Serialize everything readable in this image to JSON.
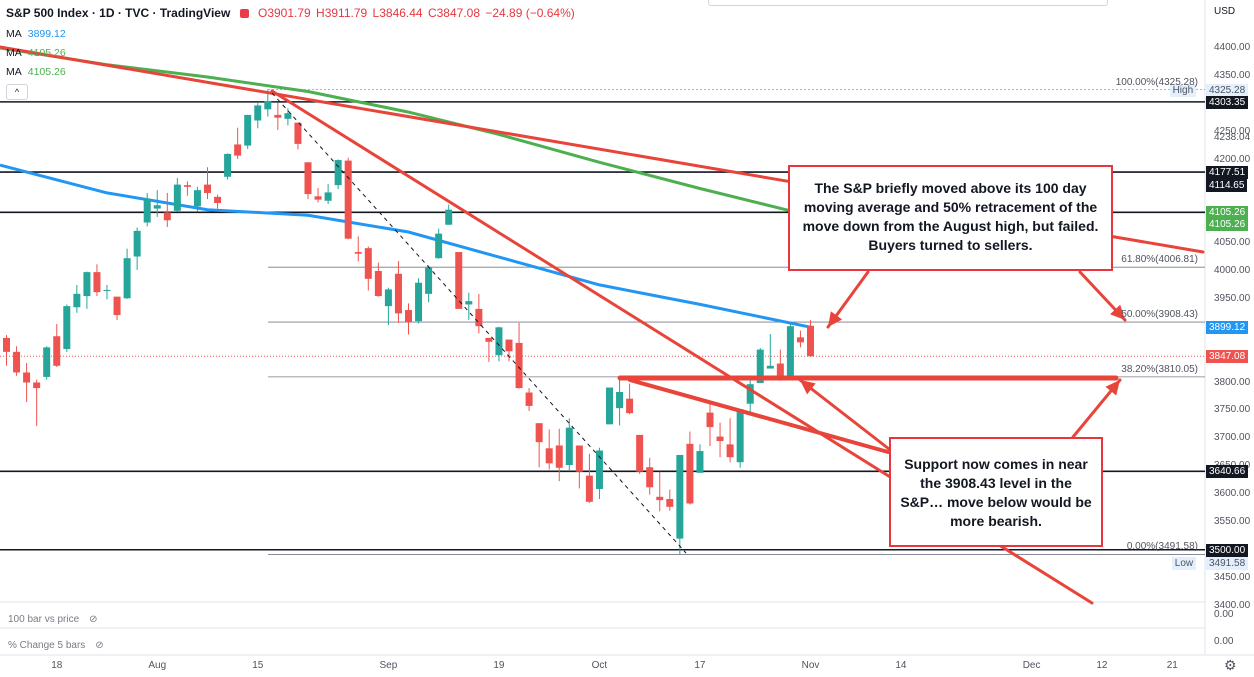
{
  "header": {
    "symbol": "S&P 500 Index · 1D · TVC · TradingView",
    "open": "O3901.79",
    "high": "H3911.79",
    "low": "L3846.44",
    "close": "C3847.08",
    "change": "−24.89 (−0.64%)"
  },
  "indicators": [
    {
      "name": "MA",
      "value": "3899.12",
      "color": "#2196f3"
    },
    {
      "name": "MA",
      "value": "4105.26",
      "color": "#4caf50"
    },
    {
      "name": "MA",
      "value": "4105.26",
      "color": "#4caf50"
    }
  ],
  "axis": {
    "currency": "USD",
    "y_ticks": [
      "4400.00",
      "4350.00",
      "4250.00",
      "4238.04",
      "4200.00",
      "4050.00",
      "4000.00",
      "3950.00",
      "3800.00",
      "3750.00",
      "3700.00",
      "3650.00",
      "3600.00",
      "3550.00",
      "3450.00",
      "3400.00"
    ],
    "x_ticks": [
      {
        "label": "18",
        "date": "2022-07-18"
      },
      {
        "label": "Aug",
        "date": "2022-08-01"
      },
      {
        "label": "15",
        "date": "2022-08-15"
      },
      {
        "label": "Sep",
        "date": "2022-09-01"
      },
      {
        "label": "19",
        "date": "2022-09-19"
      },
      {
        "label": "Oct",
        "date": "2022-10-03"
      },
      {
        "label": "17",
        "date": "2022-10-17"
      },
      {
        "label": "Nov",
        "date": "2022-11-01"
      },
      {
        "label": "14",
        "date": "2022-11-14"
      },
      {
        "label": "Dec",
        "date": "2022-12-01"
      },
      {
        "label": "12",
        "date": "2022-12-12"
      },
      {
        "label": "21",
        "date": "2022-12-21"
      }
    ]
  },
  "price_tags": [
    {
      "label": "High",
      "value": "4325.28",
      "style": "soft"
    },
    {
      "label": "",
      "value": "4303.35",
      "style": "dark"
    },
    {
      "label": "",
      "value": "4177.51",
      "style": "dark"
    },
    {
      "label": "",
      "value": "4114.65",
      "style": "dark"
    },
    {
      "label": "",
      "value": "4105.26",
      "style": "green"
    },
    {
      "label": "",
      "value": "4105.26",
      "style": "green"
    },
    {
      "label": "",
      "value": "3899.12",
      "style": "blue"
    },
    {
      "label": "",
      "value": "3847.08",
      "style": "red"
    },
    {
      "label": "",
      "value": "3640.66",
      "style": "dark"
    },
    {
      "label": "",
      "value": "3500.00",
      "style": "dark"
    },
    {
      "label": "Low",
      "value": "3491.58",
      "style": "soft"
    }
  ],
  "fib_labels": [
    {
      "text": "100.00%(4325.28)",
      "price": 4325.28
    },
    {
      "text": "61.80%(4006.81)",
      "price": 4006.81
    },
    {
      "text": "50.00%(3908.43)",
      "price": 3908.43
    },
    {
      "text": "38.20%(3810.05)",
      "price": 3810.05
    },
    {
      "text": "0.00%(3491.58)",
      "price": 3491.58
    }
  ],
  "sub_panes": [
    {
      "label": "100 bar vs price",
      "value": "0.00"
    },
    {
      "label": "% Change 5 bars",
      "value": "0.00"
    }
  ],
  "annotations": {
    "upper": "The S&P briefly moved above its 100 day moving average and 50% retracement of the move down from the August high, but failed. Buyers turned to sellers.",
    "lower": "Support now comes in near the 3908.43 level in the S&P… move below would be more bearish."
  },
  "colors": {
    "up": "#26a69a",
    "down": "#ef5350",
    "ma100": "#2196f3",
    "ma200": "#4caf50",
    "trend": "#e8443a",
    "annotation": "#e8363f"
  },
  "chart_data": {
    "type": "candlestick",
    "title": "S&P 500 Index · 1D · TVC",
    "ylim": [
      3400,
      4430
    ],
    "horizontal_levels": [
      4303.35,
      4177.51,
      4105.26,
      3640.66,
      3500.0
    ],
    "candles": [
      {
        "date": "2022-07-11",
        "o": 3880,
        "h": 3885,
        "l": 3830,
        "c": 3855
      },
      {
        "date": "2022-07-12",
        "o": 3855,
        "h": 3865,
        "l": 3812,
        "c": 3818
      },
      {
        "date": "2022-07-13",
        "o": 3818,
        "h": 3835,
        "l": 3765,
        "c": 3800
      },
      {
        "date": "2022-07-14",
        "o": 3800,
        "h": 3805,
        "l": 3722,
        "c": 3790
      },
      {
        "date": "2022-07-15",
        "o": 3810,
        "h": 3865,
        "l": 3805,
        "c": 3863
      },
      {
        "date": "2022-07-18",
        "o": 3883,
        "h": 3905,
        "l": 3828,
        "c": 3830
      },
      {
        "date": "2022-07-19",
        "o": 3860,
        "h": 3940,
        "l": 3855,
        "c": 3937
      },
      {
        "date": "2022-07-20",
        "o": 3935,
        "h": 3975,
        "l": 3925,
        "c": 3959
      },
      {
        "date": "2022-07-21",
        "o": 3955,
        "h": 3999,
        "l": 3932,
        "c": 3998
      },
      {
        "date": "2022-07-22",
        "o": 3998,
        "h": 4012,
        "l": 3955,
        "c": 3962
      },
      {
        "date": "2022-07-25",
        "o": 3966,
        "h": 3975,
        "l": 3949,
        "c": 3966
      },
      {
        "date": "2022-07-26",
        "o": 3954,
        "h": 3954,
        "l": 3912,
        "c": 3921
      },
      {
        "date": "2022-07-27",
        "o": 3951,
        "h": 4040,
        "l": 3950,
        "c": 4023
      },
      {
        "date": "2022-07-28",
        "o": 4026,
        "h": 4078,
        "l": 4002,
        "c": 4072
      },
      {
        "date": "2022-07-29",
        "o": 4087,
        "h": 4140,
        "l": 4080,
        "c": 4130
      },
      {
        "date": "2022-08-01",
        "o": 4112,
        "h": 4145,
        "l": 4097,
        "c": 4118
      },
      {
        "date": "2022-08-02",
        "o": 4105,
        "h": 4140,
        "l": 4079,
        "c": 4091
      },
      {
        "date": "2022-08-03",
        "o": 4108,
        "h": 4167,
        "l": 4107,
        "c": 4155
      },
      {
        "date": "2022-08-04",
        "o": 4154,
        "h": 4161,
        "l": 4135,
        "c": 4151
      },
      {
        "date": "2022-08-05",
        "o": 4116,
        "h": 4151,
        "l": 4107,
        "c": 4145
      },
      {
        "date": "2022-08-08",
        "o": 4155,
        "h": 4186,
        "l": 4129,
        "c": 4140
      },
      {
        "date": "2022-08-09",
        "o": 4133,
        "h": 4137,
        "l": 4112,
        "c": 4122
      },
      {
        "date": "2022-08-10",
        "o": 4169,
        "h": 4211,
        "l": 4164,
        "c": 4210
      },
      {
        "date": "2022-08-11",
        "o": 4227,
        "h": 4257,
        "l": 4201,
        "c": 4207
      },
      {
        "date": "2022-08-12",
        "o": 4225,
        "h": 4280,
        "l": 4219,
        "c": 4280
      },
      {
        "date": "2022-08-15",
        "o": 4270,
        "h": 4301,
        "l": 4256,
        "c": 4297
      },
      {
        "date": "2022-08-16",
        "o": 4290,
        "h": 4325.28,
        "l": 4277,
        "c": 4305
      },
      {
        "date": "2022-08-17",
        "o": 4280,
        "h": 4302,
        "l": 4253,
        "c": 4275
      },
      {
        "date": "2022-08-18",
        "o": 4273,
        "h": 4292,
        "l": 4261,
        "c": 4283
      },
      {
        "date": "2022-08-19",
        "o": 4266,
        "h": 4266,
        "l": 4218,
        "c": 4228
      },
      {
        "date": "2022-08-22",
        "o": 4195,
        "h": 4195,
        "l": 4129,
        "c": 4138
      },
      {
        "date": "2022-08-23",
        "o": 4134,
        "h": 4149,
        "l": 4123,
        "c": 4128
      },
      {
        "date": "2022-08-24",
        "o": 4126,
        "h": 4156,
        "l": 4120,
        "c": 4141
      },
      {
        "date": "2022-08-25",
        "o": 4154,
        "h": 4200,
        "l": 4147,
        "c": 4199
      },
      {
        "date": "2022-08-26",
        "o": 4198,
        "h": 4203,
        "l": 4057,
        "c": 4058
      },
      {
        "date": "2022-08-29",
        "o": 4034,
        "h": 4062,
        "l": 4017,
        "c": 4031
      },
      {
        "date": "2022-08-30",
        "o": 4041,
        "h": 4044,
        "l": 3965,
        "c": 3986
      },
      {
        "date": "2022-08-31",
        "o": 4000,
        "h": 4015,
        "l": 3954,
        "c": 3955
      },
      {
        "date": "2022-09-01",
        "o": 3937,
        "h": 3970,
        "l": 3903,
        "c": 3967
      },
      {
        "date": "2022-09-02",
        "o": 3995,
        "h": 4018,
        "l": 3907,
        "c": 3924
      },
      {
        "date": "2022-09-06",
        "o": 3930,
        "h": 3942,
        "l": 3886,
        "c": 3908
      },
      {
        "date": "2022-09-07",
        "o": 3910,
        "h": 3987,
        "l": 3906,
        "c": 3979
      },
      {
        "date": "2022-09-08",
        "o": 3959,
        "h": 4010,
        "l": 3944,
        "c": 4006
      },
      {
        "date": "2022-09-09",
        "o": 4023,
        "h": 4076,
        "l": 4022,
        "c": 4067
      },
      {
        "date": "2022-09-12",
        "o": 4083,
        "h": 4119,
        "l": 4083,
        "c": 4110
      },
      {
        "date": "2022-09-13",
        "o": 4034,
        "h": 4034,
        "l": 3933,
        "c": 3932
      },
      {
        "date": "2022-09-14",
        "o": 3940,
        "h": 3961,
        "l": 3912,
        "c": 3946
      },
      {
        "date": "2022-09-15",
        "o": 3932,
        "h": 3959,
        "l": 3888,
        "c": 3901
      },
      {
        "date": "2022-09-16",
        "o": 3880,
        "h": 3880,
        "l": 3837,
        "c": 3873
      },
      {
        "date": "2022-09-19",
        "o": 3849,
        "h": 3900,
        "l": 3838,
        "c": 3899
      },
      {
        "date": "2022-09-20",
        "o": 3877,
        "h": 3877,
        "l": 3838,
        "c": 3856
      },
      {
        "date": "2022-09-21",
        "o": 3871,
        "h": 3907,
        "l": 3789,
        "c": 3790
      },
      {
        "date": "2022-09-22",
        "o": 3782,
        "h": 3790,
        "l": 3749,
        "c": 3758
      },
      {
        "date": "2022-09-23",
        "o": 3727,
        "h": 3727,
        "l": 3648,
        "c": 3693
      },
      {
        "date": "2022-09-26",
        "o": 3682,
        "h": 3716,
        "l": 3644,
        "c": 3655
      },
      {
        "date": "2022-09-27",
        "o": 3687,
        "h": 3717,
        "l": 3623,
        "c": 3647
      },
      {
        "date": "2022-09-28",
        "o": 3652,
        "h": 3736,
        "l": 3641,
        "c": 3719
      },
      {
        "date": "2022-09-29",
        "o": 3687,
        "h": 3687,
        "l": 3610,
        "c": 3640
      },
      {
        "date": "2022-09-30",
        "o": 3633,
        "h": 3672,
        "l": 3584,
        "c": 3586
      },
      {
        "date": "2022-10-03",
        "o": 3609,
        "h": 3683,
        "l": 3591,
        "c": 3678
      },
      {
        "date": "2022-10-04",
        "o": 3725,
        "h": 3791,
        "l": 3725,
        "c": 3791
      },
      {
        "date": "2022-10-05",
        "o": 3754,
        "h": 3807,
        "l": 3723,
        "c": 3783
      },
      {
        "date": "2022-10-06",
        "o": 3771,
        "h": 3798,
        "l": 3743,
        "c": 3745
      },
      {
        "date": "2022-10-07",
        "o": 3706,
        "h": 3706,
        "l": 3636,
        "c": 3640
      },
      {
        "date": "2022-10-10",
        "o": 3648,
        "h": 3665,
        "l": 3599,
        "c": 3612
      },
      {
        "date": "2022-10-11",
        "o": 3595,
        "h": 3640,
        "l": 3569,
        "c": 3589
      },
      {
        "date": "2022-10-12",
        "o": 3591,
        "h": 3608,
        "l": 3570,
        "c": 3577
      },
      {
        "date": "2022-10-13",
        "o": 3520,
        "h": 3670,
        "l": 3491.58,
        "c": 3670
      },
      {
        "date": "2022-10-14",
        "o": 3690,
        "h": 3712,
        "l": 3581,
        "c": 3583
      },
      {
        "date": "2022-10-17",
        "o": 3638,
        "h": 3689,
        "l": 3638,
        "c": 3677
      },
      {
        "date": "2022-10-18",
        "o": 3746,
        "h": 3762,
        "l": 3686,
        "c": 3720
      },
      {
        "date": "2022-10-19",
        "o": 3703,
        "h": 3728,
        "l": 3666,
        "c": 3695
      },
      {
        "date": "2022-10-20",
        "o": 3689,
        "h": 3736,
        "l": 3657,
        "c": 3666
      },
      {
        "date": "2022-10-21",
        "o": 3657,
        "h": 3752,
        "l": 3647,
        "c": 3752
      },
      {
        "date": "2022-10-24",
        "o": 3762,
        "h": 3810,
        "l": 3741,
        "c": 3797
      },
      {
        "date": "2022-10-25",
        "o": 3799,
        "h": 3862,
        "l": 3799,
        "c": 3859
      },
      {
        "date": "2022-10-26",
        "o": 3825,
        "h": 3887,
        "l": 3825,
        "c": 3830
      },
      {
        "date": "2022-10-27",
        "o": 3834,
        "h": 3859,
        "l": 3803,
        "c": 3807
      },
      {
        "date": "2022-10-28",
        "o": 3808,
        "h": 3905,
        "l": 3808,
        "c": 3901
      },
      {
        "date": "2022-10-31",
        "o": 3881,
        "h": 3893,
        "l": 3863,
        "c": 3872
      },
      {
        "date": "2022-11-01",
        "o": 3901.79,
        "h": 3911.79,
        "l": 3846.44,
        "c": 3847.08
      }
    ],
    "ma100": [
      {
        "date": "2022-07-11",
        "v": 4190
      },
      {
        "date": "2022-07-25",
        "v": 4140
      },
      {
        "date": "2022-08-08",
        "v": 4110
      },
      {
        "date": "2022-08-22",
        "v": 4100
      },
      {
        "date": "2022-09-06",
        "v": 4070
      },
      {
        "date": "2022-09-19",
        "v": 4025
      },
      {
        "date": "2022-10-03",
        "v": 3975
      },
      {
        "date": "2022-10-17",
        "v": 3940
      },
      {
        "date": "2022-11-01",
        "v": 3899.12
      }
    ],
    "ma200": [
      {
        "date": "2022-07-11",
        "v": 4400
      },
      {
        "date": "2022-07-25",
        "v": 4370
      },
      {
        "date": "2022-08-08",
        "v": 4348
      },
      {
        "date": "2022-08-22",
        "v": 4322
      },
      {
        "date": "2022-09-06",
        "v": 4285
      },
      {
        "date": "2022-09-19",
        "v": 4245
      },
      {
        "date": "2022-10-03",
        "v": 4195
      },
      {
        "date": "2022-10-17",
        "v": 4148
      },
      {
        "date": "2022-10-28",
        "v": 4108
      }
    ]
  }
}
